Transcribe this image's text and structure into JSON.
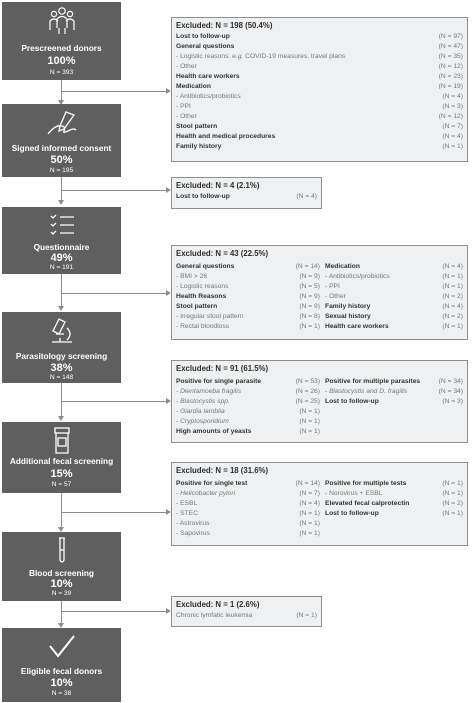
{
  "steps": [
    {
      "key": "prescreened",
      "title": "Prescreened donors",
      "percent": "100%",
      "n": "N = 393",
      "icon": "people-group-icon"
    },
    {
      "key": "consent",
      "title": "Signed informed consent",
      "percent": "50%",
      "n": "N = 195",
      "icon": "hand-writing-icon"
    },
    {
      "key": "questionnaire",
      "title": "Questionnaire",
      "percent": "49%",
      "n": "N = 191",
      "icon": "checklist-icon"
    },
    {
      "key": "parasitology",
      "title": "Parasitology screening",
      "percent": "38%",
      "n": "N = 148",
      "icon": "microscope-icon"
    },
    {
      "key": "fecal",
      "title": "Additional fecal screening",
      "percent": "15%",
      "n": "N = 57",
      "icon": "sample-jar-icon"
    },
    {
      "key": "blood",
      "title": "Blood screening",
      "percent": "10%",
      "n": "N = 39",
      "icon": "test-tube-icon"
    },
    {
      "key": "eligible",
      "title": "Eligible fecal donors",
      "percent": "10%",
      "n": "N = 38",
      "icon": "checkmark-icon"
    }
  ],
  "exclusions": [
    {
      "header": "Excluded: N = 198 (50.4%)",
      "left": [
        {
          "label": "Lost to follow-up",
          "n": "(N = 97)",
          "style": "b"
        },
        {
          "label": "General questions",
          "n": "(N = 47)",
          "style": "b"
        },
        {
          "label_pre": "- Logistic reasons: ",
          "label_it": "e.g.",
          "label_post": " COVID-19 measures, travel plans",
          "n": "(N = 35)",
          "style": "s"
        },
        {
          "label": "- Other",
          "n": "(N = 12)",
          "style": "s"
        },
        {
          "label": "Health care workers",
          "n": "(N = 23)",
          "style": "b"
        },
        {
          "label": "Medication",
          "n": "(N = 19)",
          "style": "b"
        },
        {
          "label": "- Antibiotics/probiotics",
          "n": "(N = 4)",
          "style": "s"
        },
        {
          "label": "- PPI",
          "n": "(N = 3)",
          "style": "s"
        },
        {
          "label": "- Other",
          "n": "(N = 12)",
          "style": "s"
        },
        {
          "label": "Stool pattern",
          "n": "(N = 7)",
          "style": "b"
        },
        {
          "label": "Health and medical procedures",
          "n": "(N = 4)",
          "style": "b"
        },
        {
          "label": "Family history",
          "n": "(N = 1)",
          "style": "b"
        }
      ],
      "right": []
    },
    {
      "header": "Excluded: N = 4 (2.1%)",
      "left": [
        {
          "label": "Lost to follow-up",
          "n": "(N = 4)",
          "style": "b"
        }
      ],
      "right": []
    },
    {
      "header": "Excluded: N = 43 (22.5%)",
      "left": [
        {
          "label": "General questions",
          "n": "(N = 14)",
          "style": "b"
        },
        {
          "label": "- BMI > 26",
          "n": "(N = 9)",
          "style": "s"
        },
        {
          "label": "- Logistic reasons",
          "n": "(N = 5)",
          "style": "s"
        },
        {
          "label": "Health Reasons",
          "n": "(N = 9)",
          "style": "b"
        },
        {
          "label": "Stool pattern",
          "n": "(N = 9)",
          "style": "b"
        },
        {
          "label": "- Irregular stool pattern",
          "n": "(N = 8)",
          "style": "s"
        },
        {
          "label": "- Rectal bloodloss",
          "n": "(N = 1)",
          "style": "s"
        }
      ],
      "right": [
        {
          "label": "Medication",
          "n": "(N = 4)",
          "style": "b"
        },
        {
          "label": "- Antibiotics/probiotics",
          "n": "(N = 1)",
          "style": "s"
        },
        {
          "label": "- PPI",
          "n": "(N = 1)",
          "style": "s"
        },
        {
          "label": "- Other",
          "n": "(N = 2)",
          "style": "s"
        },
        {
          "label": "Family history",
          "n": "(N = 4)",
          "style": "b"
        },
        {
          "label": "Sexual history",
          "n": "(N = 2)",
          "style": "b"
        },
        {
          "label": "Health care workers",
          "n": "(N = 1)",
          "style": "b"
        }
      ]
    },
    {
      "header": "Excluded: N = 91 (61.5%)",
      "left": [
        {
          "label": "Positive for single parasite",
          "n": "(N = 53)",
          "style": "b"
        },
        {
          "label": "- Dientamoeba fragilis",
          "n": "(N = 26)",
          "style": "i"
        },
        {
          "label": "- Blastocystis spp.",
          "n": "(N = 25)",
          "style": "i"
        },
        {
          "label": "- Giardia lamblia",
          "n": "(N = 1)",
          "style": "i"
        },
        {
          "label": "- Cryptosporidium",
          "n": "(N = 1)",
          "style": "i"
        },
        {
          "label": "High amounts of yeasts",
          "n": "(N = 1)",
          "style": "b"
        }
      ],
      "right": [
        {
          "label": "Positive for multiple parasites",
          "n": "(N = 34)",
          "style": "b"
        },
        {
          "label": "- Blastocystis and D. fragilis",
          "n": "(N = 34)",
          "style": "i"
        },
        {
          "label": "Lost to follow-up",
          "n": "(N = 3)",
          "style": "b"
        }
      ]
    },
    {
      "header": "Excluded: N = 18 (31.6%)",
      "left": [
        {
          "label": "Positive for single test",
          "n": "(N = 14)",
          "style": "b"
        },
        {
          "label": "- Helicobacter pylori",
          "n": "(N = 7)",
          "style": "i"
        },
        {
          "label": "- ESBL",
          "n": "(N = 4)",
          "style": "s"
        },
        {
          "label": "- STEC",
          "n": "(N = 1)",
          "style": "s"
        },
        {
          "label": "- Astrovirus",
          "n": "(N = 1)",
          "style": "s"
        },
        {
          "label": "- Sapovirus",
          "n": "(N = 1)",
          "style": "s"
        }
      ],
      "right": [
        {
          "label": "Positive for multiple tests",
          "n": "(N = 1)",
          "style": "b"
        },
        {
          "label": "- Norovirus + ESBL",
          "n": "(N = 1)",
          "style": "s"
        },
        {
          "label": "Elevated fecal calprotectin",
          "n": "(N = 2)",
          "style": "b"
        },
        {
          "label": "Lost to follow-up",
          "n": "(N = 1)",
          "style": "b"
        }
      ]
    },
    {
      "header": "Excluded: N = 1 (2.6%)",
      "left": [
        {
          "label": "Chronic lymfatic leukemia",
          "n": "(N = 1)",
          "style": "s"
        }
      ],
      "right": []
    }
  ]
}
